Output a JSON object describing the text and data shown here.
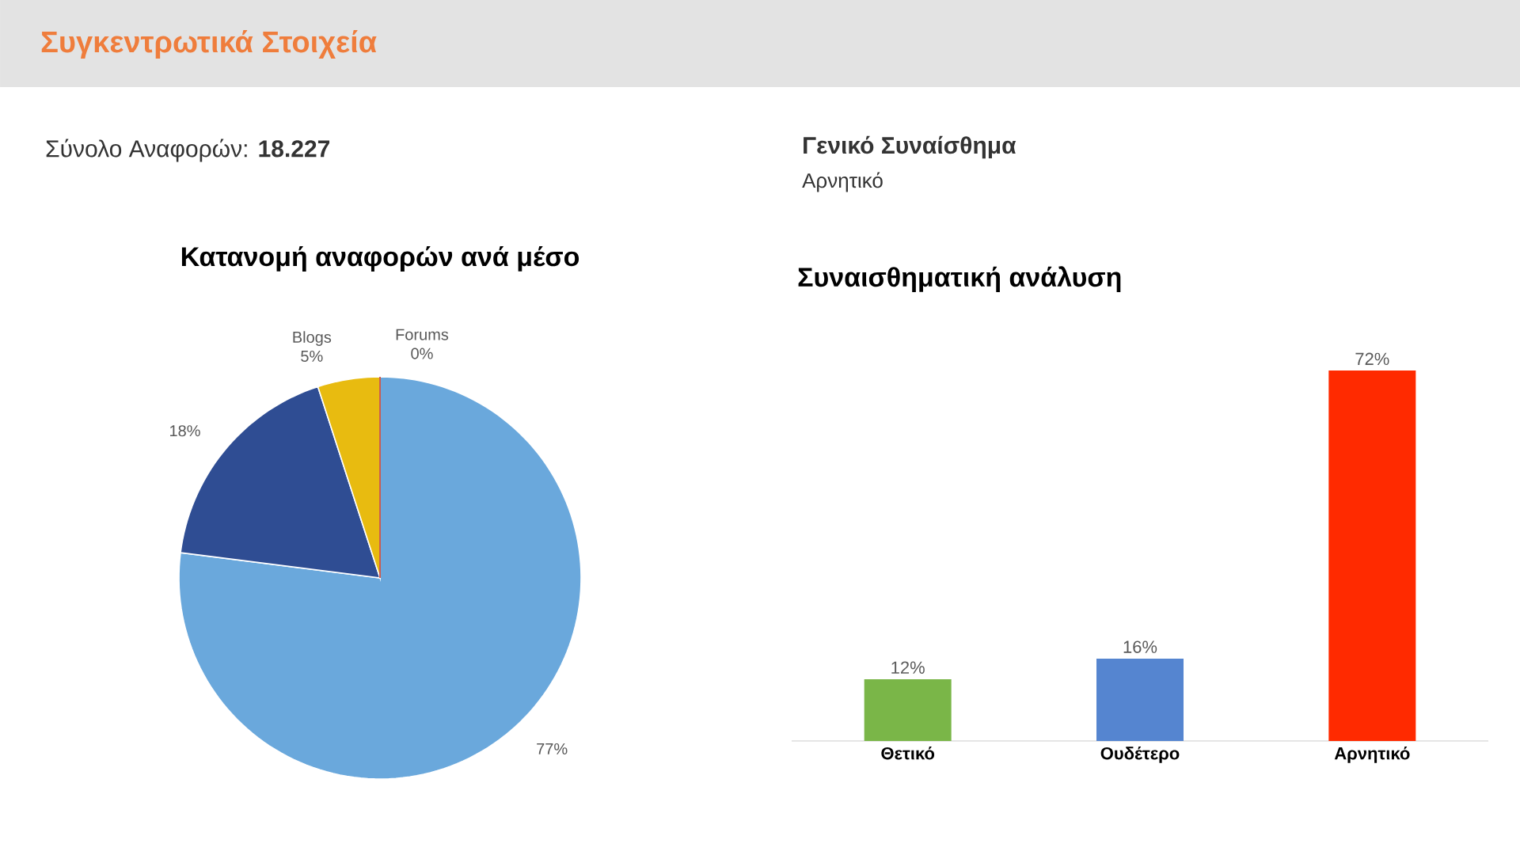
{
  "chart_data": [
    {
      "type": "other",
      "title": "Συγκεντρωτικά Στοιχεία",
      "annotations": [
        "Σύνολο Αναφορών: **18.227**",
        "Γενικό Συναίσθημα",
        "Αρνητικό"
      ]
    },
    {
      "type": "pie",
      "title": "Κατανομή αναφορών ανά μέσο",
      "categories": [
        null,
        null,
        "Blogs",
        "Forums"
      ],
      "values": [
        77,
        18,
        5,
        0
      ],
      "value_labels": [
        "77%",
        "18%",
        "5%",
        "0%"
      ],
      "colors": [
        "#6aa8dc",
        "#2f4d93",
        "#e8bb10",
        "#c0392b"
      ]
    },
    {
      "type": "bar",
      "title": "Συναισθηματική ανάλυση",
      "categories": [
        "Θετικό",
        "Ουδέτερο",
        "Αρνητικό"
      ],
      "values": [
        12,
        16,
        72
      ],
      "value_labels": [
        "12%",
        "16%",
        "72%"
      ],
      "colors": [
        "#7ab648",
        "#5585d0",
        "#ff2a00"
      ]
    }
  ]
}
